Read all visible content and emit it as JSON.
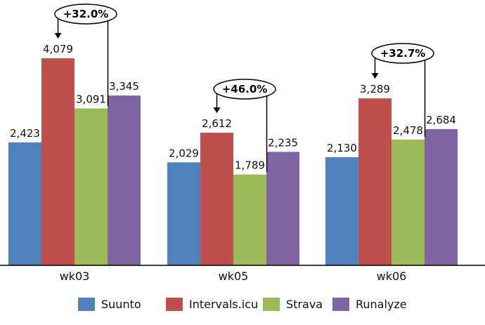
{
  "chart_data": {
    "type": "bar",
    "categories": [
      "wk03",
      "wk05",
      "wk06"
    ],
    "series": [
      {
        "name": "Suunto",
        "color": "#4f81bd",
        "values": [
          2423,
          2029,
          2130
        ],
        "labels": [
          "2,423",
          "2,029",
          "2,130"
        ]
      },
      {
        "name": "Intervals.icu",
        "color": "#c0504d",
        "values": [
          4079,
          2612,
          3289
        ],
        "labels": [
          "4,079",
          "2,612",
          "3,289"
        ]
      },
      {
        "name": "Strava",
        "color": "#9bbb59",
        "values": [
          3091,
          1789,
          2478
        ],
        "labels": [
          "3,091",
          "1,789",
          "2,478"
        ]
      },
      {
        "name": "Runalyze",
        "color": "#8064a2",
        "values": [
          3345,
          2235,
          2684
        ],
        "labels": [
          "3,345",
          "2,235",
          "2,684"
        ]
      }
    ],
    "annotations": [
      {
        "category": "wk03",
        "from_series": "Strava",
        "to_series": "Intervals.icu",
        "text": "+32.0%"
      },
      {
        "category": "wk05",
        "from_series": "Strava",
        "to_series": "Intervals.icu",
        "text": "+46.0%"
      },
      {
        "category": "wk06",
        "from_series": "Strava",
        "to_series": "Intervals.icu",
        "text": "+32.7%"
      }
    ],
    "title": "",
    "xlabel": "",
    "ylabel": "",
    "ylim": [
      0,
      4500
    ],
    "grid": false,
    "legend_position": "bottom"
  }
}
